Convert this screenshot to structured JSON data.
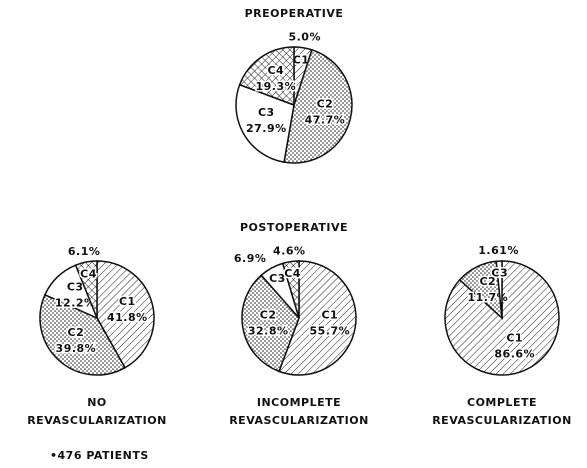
{
  "chart_data": [
    {
      "type": "pie",
      "title": [
        "PREOPERATIVE"
      ],
      "categories": [
        "C1",
        "C2",
        "C3",
        "C4"
      ],
      "values": [
        5.0,
        47.7,
        27.9,
        19.3
      ],
      "value_labels": [
        "5.0%",
        "47.7%",
        "27.9%",
        "19.3%"
      ]
    },
    {
      "type": "pie",
      "title": [
        "NO",
        "REVASCULARIZATION"
      ],
      "categories": [
        "C1",
        "C2",
        "C3",
        "C4"
      ],
      "values": [
        41.8,
        39.8,
        12.2,
        6.1
      ],
      "value_labels": [
        "41.8%",
        "39.8%",
        "12.2%",
        "6.1%"
      ]
    },
    {
      "type": "pie",
      "title": [
        "INCOMPLETE",
        "REVASCULARIZATION"
      ],
      "categories": [
        "C1",
        "C2",
        "C3",
        "C4"
      ],
      "values": [
        55.7,
        32.8,
        6.9,
        4.6
      ],
      "value_labels": [
        "55.7%",
        "32.8%",
        "6.9%",
        "4.6%"
      ]
    },
    {
      "type": "pie",
      "title": [
        "COMPLETE",
        "REVASCULARIZATION"
      ],
      "categories": [
        "C1",
        "C2",
        "C3"
      ],
      "values": [
        86.6,
        11.7,
        1.61
      ],
      "value_labels": [
        "86.6%",
        "11.7%",
        "1.61%"
      ]
    }
  ],
  "section_title": "POSTOPERATIVE",
  "footnote": "•476 PATIENTS"
}
